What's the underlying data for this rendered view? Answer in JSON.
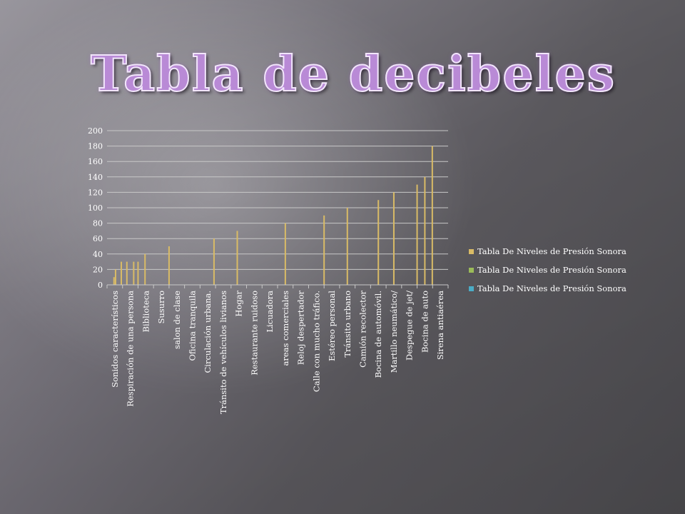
{
  "title": "Tabla de decibeles",
  "colors": {
    "series1": "#d9bb66",
    "series2": "#9bbb59",
    "series3": "#4bacc6",
    "gridline": "#c8c8c8",
    "text": "#ffffff"
  },
  "chart_data": {
    "type": "bar",
    "title": "",
    "xlabel": "",
    "ylabel": "",
    "ylim": [
      0,
      200
    ],
    "yticks": [
      "0",
      "20",
      "40",
      "60",
      "80",
      "100",
      "120",
      "140",
      "160",
      "180",
      "200"
    ],
    "grid": true,
    "legend_position": "right",
    "categories": [
      "Sonidos característicos",
      "Respiración de una persona",
      "Biblioteca",
      "Susurro",
      "salon de clase",
      "Oficina tranquila",
      "Circulación urbana.",
      "Tránsito de vehículos livianos",
      "Hogar",
      "Restaurante ruidoso",
      "Licuadora",
      "areas comerciales",
      "Reloj despertador",
      "Calle con mucho tráfico.",
      "Estéreo personal",
      "Tránsito urbano",
      "Camión recolector",
      "Bocina de automóvil.",
      "Martillo neumático/",
      "Despegue de jet/",
      "Bocina de auto",
      "Sirena antiaérea"
    ],
    "bars": [
      {
        "x": 0.45,
        "value": 10
      },
      {
        "x": 0.55,
        "value": 20
      },
      {
        "x": 0.92,
        "value": 30
      },
      {
        "x": 1.28,
        "value": 30
      },
      {
        "x": 1.72,
        "value": 30
      },
      {
        "x": 2.0,
        "value": 30
      },
      {
        "x": 2.45,
        "value": 40
      },
      {
        "x": 4.0,
        "value": 50
      },
      {
        "x": 6.9,
        "value": 60
      },
      {
        "x": 8.4,
        "value": 70
      },
      {
        "x": 11.5,
        "value": 80
      },
      {
        "x": 14.0,
        "value": 90
      },
      {
        "x": 15.5,
        "value": 100
      },
      {
        "x": 17.5,
        "value": 110
      },
      {
        "x": 18.5,
        "value": 120
      },
      {
        "x": 20.0,
        "value": 130
      },
      {
        "x": 20.5,
        "value": 140
      },
      {
        "x": 20.98,
        "value": 180
      }
    ],
    "series": [
      {
        "name": "Tabla De Niveles de Presión Sonora",
        "color": "#d9bb66"
      },
      {
        "name": "Tabla De Niveles de Presión Sonora",
        "color": "#9bbb59"
      },
      {
        "name": "Tabla De Niveles de Presión Sonora",
        "color": "#4bacc6"
      }
    ]
  }
}
